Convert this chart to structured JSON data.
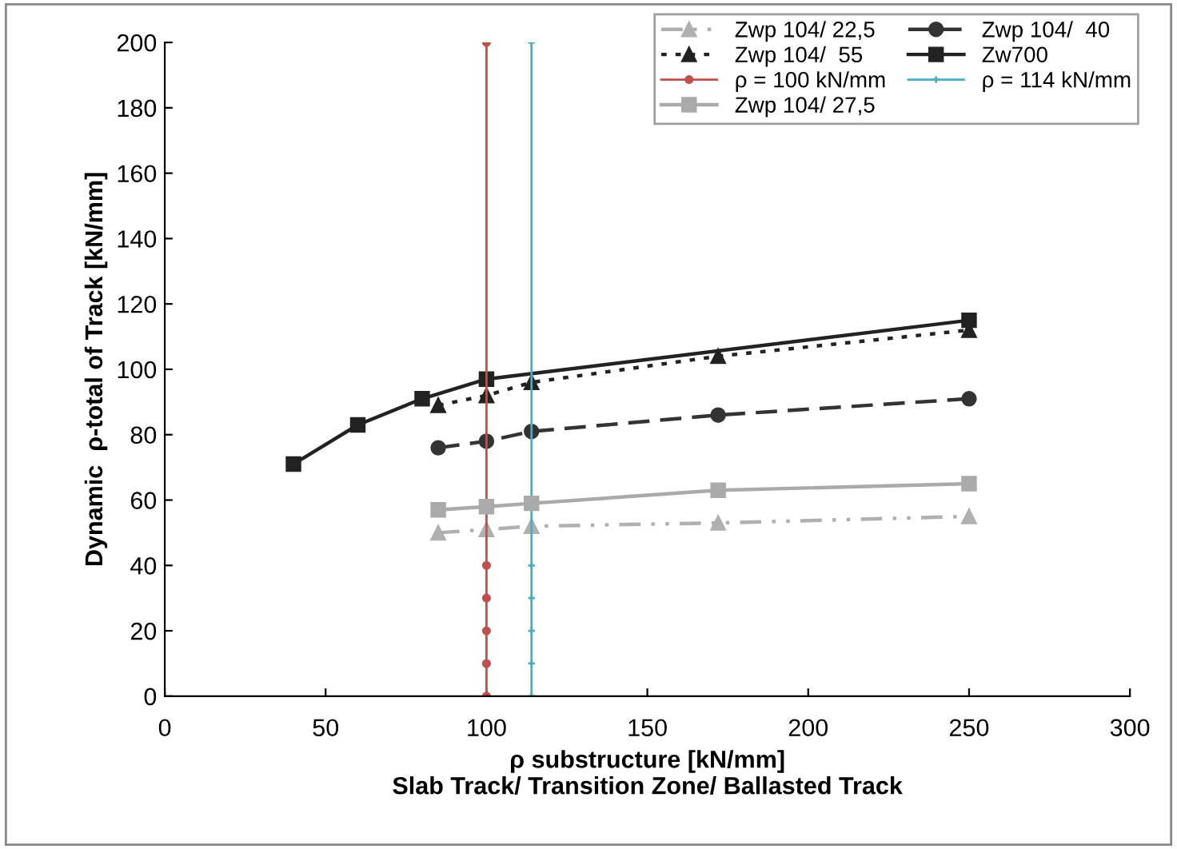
{
  "chart_data": {
    "type": "line",
    "xlabel": "ρ substructure [kN/mm]\nSlab Track/ Transition Zone/ Ballasted Track",
    "ylabel": "Dynamic  ρ-total of Track [kN/mm]",
    "xlim": [
      0,
      300
    ],
    "xticks": [
      0,
      50,
      100,
      150,
      200,
      250,
      300
    ],
    "ylim": [
      0,
      200
    ],
    "yticks": [
      0,
      20,
      40,
      60,
      80,
      100,
      120,
      140,
      160,
      180,
      200
    ],
    "grid": false,
    "legend": "top right",
    "series": [
      {
        "name": "Zwp 104/ 22,5",
        "color": "#b0b0b0",
        "marker": "triangle",
        "line_style": "dashdot",
        "x": [
          85,
          100,
          114,
          172,
          250
        ],
        "values": [
          50,
          51,
          52,
          53,
          55
        ]
      },
      {
        "name": "Zwp 104/  40",
        "color": "#333333",
        "marker": "circle",
        "line_style": "dashed",
        "x": [
          85,
          100,
          114,
          172,
          250
        ],
        "values": [
          76,
          78,
          81,
          86,
          91
        ]
      },
      {
        "name": "Zwp 104/  55",
        "color": "#222222",
        "marker": "triangle",
        "line_style": "dotted",
        "x": [
          85,
          100,
          114,
          172,
          250
        ],
        "values": [
          89,
          92,
          96,
          104,
          112
        ]
      },
      {
        "name": "Zw700",
        "color": "#222222",
        "marker": "square",
        "line_style": "solid",
        "x": [
          40,
          60,
          80,
          100,
          250
        ],
        "values": [
          71,
          83,
          91,
          97,
          115
        ]
      },
      {
        "name": "ρ = 100 kN/mm",
        "color": "#c0504d",
        "marker": "circle",
        "line_style": "solid",
        "x": [
          100,
          100,
          100,
          100,
          100,
          100
        ],
        "values": [
          0,
          10,
          20,
          30,
          40,
          200
        ]
      },
      {
        "name": "ρ = 114 kN/mm",
        "color": "#4bacc6",
        "marker": "cross",
        "line_style": "solid",
        "x": [
          114,
          114,
          114,
          114,
          114,
          114
        ],
        "values": [
          0,
          10,
          20,
          30,
          40,
          200
        ]
      },
      {
        "name": "Zwp 104/ 27,5",
        "color": "#aaaaaa",
        "marker": "square",
        "line_style": "solid",
        "x": [
          85,
          100,
          114,
          172,
          250
        ],
        "values": [
          57,
          58,
          59,
          63,
          65
        ]
      }
    ]
  }
}
